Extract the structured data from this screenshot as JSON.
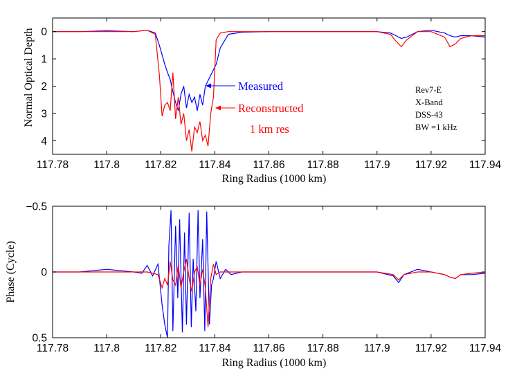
{
  "chart_data": [
    {
      "type": "line",
      "xlabel": "Ring Radius (1000 km)",
      "ylabel": "Normal Optical Depth",
      "xlim": [
        117.78,
        117.94
      ],
      "ylim": [
        4.5,
        -0.5
      ],
      "y_inverted": true,
      "x_ticks": [
        "117.78",
        "117.8",
        "117.82",
        "117.84",
        "117.86",
        "117.88",
        "117.9",
        "117.92",
        "117.94"
      ],
      "y_ticks": [
        "0",
        "1",
        "2",
        "3",
        "4"
      ],
      "series": [
        {
          "name": "Measured",
          "color": "#0000ff",
          "x": [
            117.78,
            117.79,
            117.8,
            117.81,
            117.815,
            117.818,
            117.8195,
            117.8205,
            117.8215,
            117.8225,
            117.8235,
            117.8245,
            117.8255,
            117.8265,
            117.8275,
            117.8285,
            117.8295,
            117.8305,
            117.8315,
            117.8325,
            117.8335,
            117.8345,
            117.8355,
            117.8365,
            117.8375,
            117.8385,
            117.8395,
            117.8405,
            117.842,
            117.845,
            117.85,
            117.86,
            117.87,
            117.88,
            117.89,
            117.9,
            117.905,
            117.907,
            117.909,
            117.911,
            117.915,
            117.92,
            117.925,
            117.927,
            117.929,
            117.931,
            117.935,
            117.94
          ],
          "y": [
            0.0,
            0.0,
            -0.03,
            0.0,
            -0.05,
            0.05,
            0.5,
            0.85,
            1.2,
            1.5,
            1.75,
            2.2,
            2.6,
            2.9,
            2.3,
            2.0,
            2.8,
            2.3,
            2.6,
            2.4,
            2.9,
            2.3,
            2.7,
            2.0,
            1.8,
            1.6,
            1.4,
            1.2,
            0.6,
            0.1,
            0.02,
            0.0,
            0.0,
            0.0,
            0.0,
            0.0,
            0.05,
            0.15,
            0.25,
            0.2,
            0.0,
            -0.05,
            0.05,
            0.15,
            0.2,
            0.15,
            0.15,
            0.2
          ]
        },
        {
          "name": "Reconstructed 1 km res",
          "color": "#ff0000",
          "x": [
            117.78,
            117.79,
            117.8,
            117.81,
            117.815,
            117.818,
            117.8195,
            117.8205,
            117.8215,
            117.8225,
            117.8235,
            117.8245,
            117.8255,
            117.8265,
            117.8275,
            117.8285,
            117.8295,
            117.8305,
            117.8315,
            117.8325,
            117.8335,
            117.8345,
            117.8355,
            117.8365,
            117.8375,
            117.8385,
            117.8395,
            117.8405,
            117.842,
            117.845,
            117.85,
            117.86,
            117.87,
            117.88,
            117.89,
            117.9,
            117.905,
            117.907,
            117.909,
            117.911,
            117.915,
            117.92,
            117.925,
            117.927,
            117.929,
            117.931,
            117.935,
            117.94
          ],
          "y": [
            0.0,
            0.0,
            0.0,
            0.0,
            -0.05,
            0.1,
            1.6,
            3.1,
            2.7,
            2.6,
            2.9,
            1.5,
            3.2,
            2.4,
            3.4,
            3.0,
            4.0,
            3.6,
            4.4,
            3.5,
            3.7,
            3.3,
            4.0,
            3.8,
            4.2,
            3.0,
            2.4,
            0.3,
            0.05,
            0.0,
            0.0,
            0.0,
            0.0,
            0.0,
            0.0,
            0.0,
            0.1,
            0.35,
            0.55,
            0.3,
            0.0,
            0.0,
            0.2,
            0.55,
            0.45,
            0.25,
            0.15,
            0.15
          ]
        }
      ],
      "annotations": [
        {
          "text": "Measured",
          "color": "#0000ff"
        },
        {
          "text": "Reconstructed",
          "color": "#ff0000"
        },
        {
          "text": "1 km res",
          "color": "#ff0000"
        },
        {
          "text": "Rev7-E",
          "color": "#000000"
        },
        {
          "text": "X-Band",
          "color": "#000000"
        },
        {
          "text": "DSS-43",
          "color": "#000000"
        },
        {
          "text": "BW =1 kHz",
          "color": "#000000"
        }
      ]
    },
    {
      "type": "line",
      "xlabel": "Ring Radius (1000 km)",
      "ylabel": "Phase (Cycle)",
      "xlim": [
        117.78,
        117.94
      ],
      "ylim": [
        0.5,
        -0.5
      ],
      "y_inverted": true,
      "x_ticks": [
        "117.78",
        "117.8",
        "117.82",
        "117.84",
        "117.86",
        "117.88",
        "117.9",
        "117.92",
        "117.94"
      ],
      "y_ticks": [
        "−0.5",
        "0",
        "0.5"
      ],
      "series": [
        {
          "color": "#0000ff",
          "x": [
            117.78,
            117.79,
            117.8,
            117.81,
            117.813,
            117.815,
            117.817,
            117.819,
            117.8205,
            117.8215,
            117.8225,
            117.823,
            117.8238,
            117.8245,
            117.8255,
            117.8263,
            117.827,
            117.828,
            117.8288,
            117.8295,
            117.8305,
            117.8313,
            117.832,
            117.833,
            117.8338,
            117.8345,
            117.8355,
            117.8363,
            117.837,
            117.838,
            117.8388,
            117.8395,
            117.8405,
            117.842,
            117.844,
            117.846,
            117.85,
            117.86,
            117.87,
            117.88,
            117.89,
            117.9,
            117.906,
            117.908,
            117.91,
            117.915,
            117.92,
            117.925,
            117.927,
            117.929,
            117.931,
            117.935,
            117.94
          ],
          "y": [
            0.0,
            0.0,
            -0.02,
            0.0,
            0.01,
            -0.05,
            0.03,
            -0.06,
            0.25,
            0.4,
            0.5,
            -0.2,
            -0.47,
            0.45,
            -0.35,
            0.2,
            -0.4,
            0.46,
            -0.3,
            0.4,
            -0.45,
            0.42,
            -0.1,
            0.3,
            -0.47,
            0.2,
            -0.25,
            0.45,
            -0.46,
            0.4,
            0.1,
            0.05,
            -0.08,
            0.05,
            -0.02,
            0.02,
            0.0,
            0.0,
            0.0,
            0.0,
            0.0,
            0.0,
            0.03,
            0.08,
            0.02,
            -0.02,
            0.0,
            0.02,
            0.04,
            0.05,
            0.02,
            0.02,
            0.01
          ]
        },
        {
          "color": "#ff0000",
          "x": [
            117.78,
            117.79,
            117.8,
            117.81,
            117.815,
            117.819,
            117.8205,
            117.8215,
            117.8225,
            117.8235,
            117.8245,
            117.8255,
            117.8265,
            117.8275,
            117.8285,
            117.8295,
            117.8305,
            117.8315,
            117.8325,
            117.8335,
            117.8345,
            117.8355,
            117.8365,
            117.8375,
            117.8385,
            117.8395,
            117.8405,
            117.842,
            117.85,
            117.86,
            117.87,
            117.88,
            117.89,
            117.9,
            117.906,
            117.908,
            117.91,
            117.915,
            117.92,
            117.925,
            117.927,
            117.929,
            117.931,
            117.935,
            117.94
          ],
          "y": [
            0.0,
            0.0,
            0.0,
            0.0,
            0.0,
            0.02,
            0.12,
            0.05,
            0.1,
            -0.08,
            0.06,
            0.1,
            -0.05,
            0.12,
            0.0,
            -0.1,
            0.05,
            0.15,
            0.0,
            -0.04,
            0.1,
            -0.02,
            0.12,
            0.42,
            0.05,
            -0.06,
            0.02,
            0.0,
            0.0,
            0.0,
            0.0,
            0.0,
            0.0,
            0.0,
            0.02,
            0.06,
            0.02,
            0.0,
            0.0,
            0.02,
            0.04,
            0.05,
            0.02,
            0.01,
            0.0
          ]
        }
      ]
    }
  ]
}
